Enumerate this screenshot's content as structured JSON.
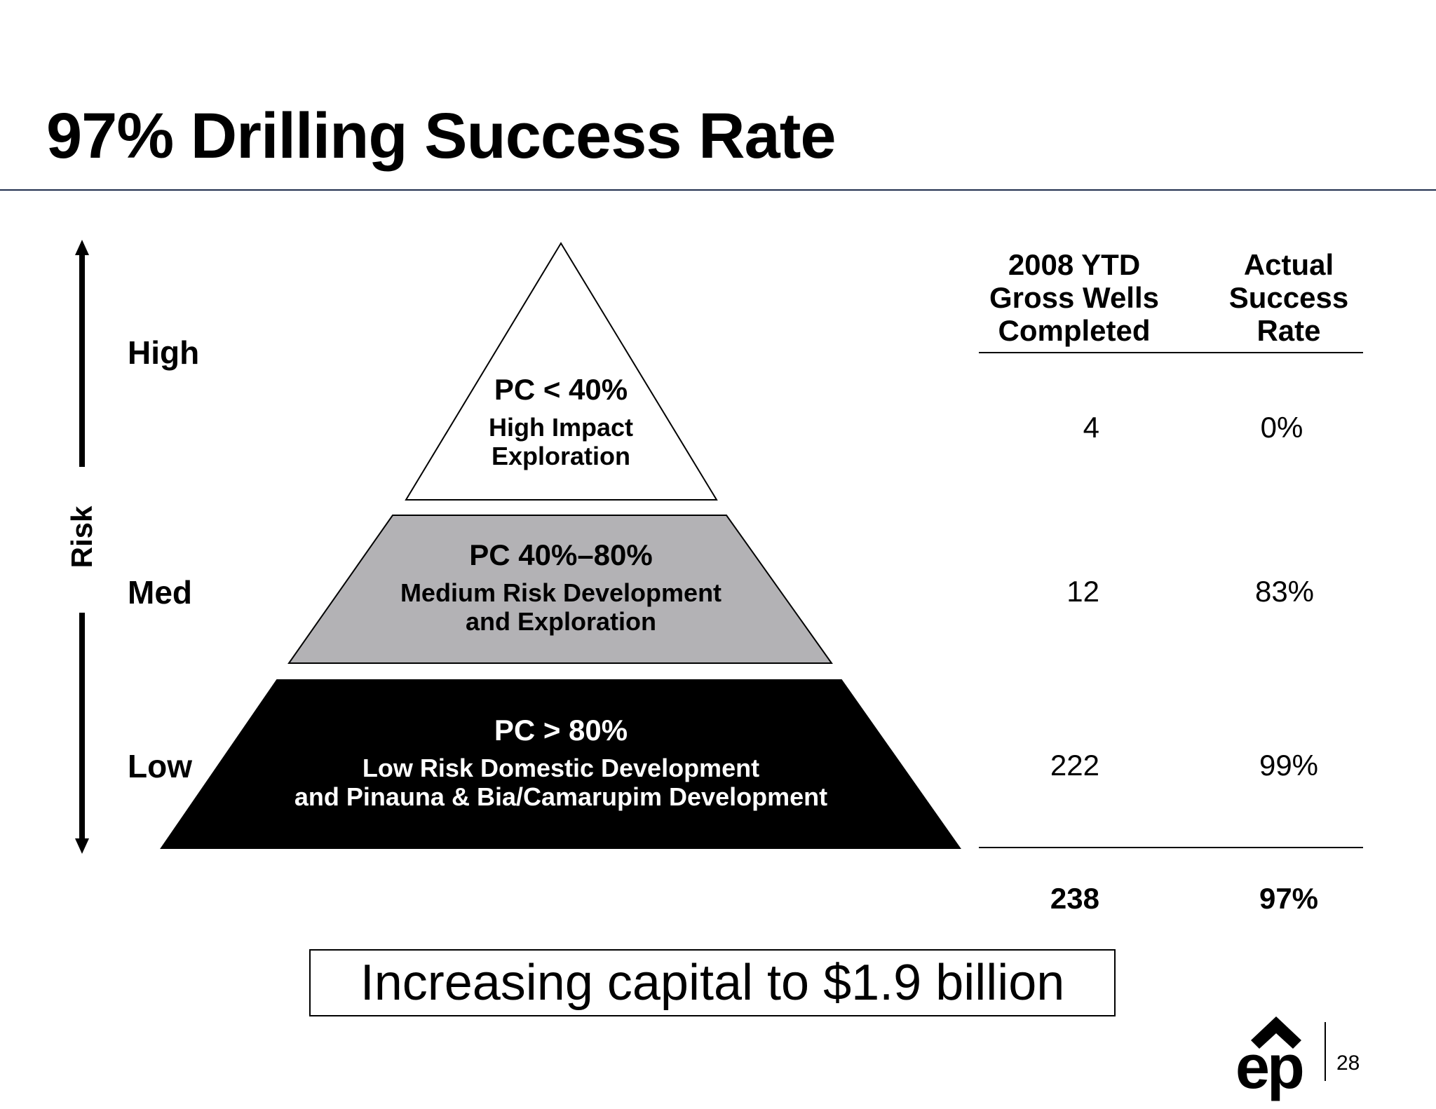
{
  "title": "97% Drilling Success Rate",
  "risk_axis": {
    "label": "Risk",
    "levels": [
      "High",
      "Med",
      "Low"
    ]
  },
  "pyramid": {
    "tiers": [
      {
        "pc": "PC < 40%",
        "desc_lines": [
          "High Impact",
          "Exploration"
        ],
        "fill": "#ffffff",
        "text_color": "#000000"
      },
      {
        "pc": "PC  40%–80%",
        "desc_lines": [
          "Medium Risk Development",
          "and Exploration"
        ],
        "fill": "#b3b2b5",
        "text_color": "#000000"
      },
      {
        "pc": "PC > 80%",
        "desc_lines": [
          "Low Risk Domestic Development",
          "and Pinauna & Bia/Camarupim Development"
        ],
        "fill": "#000000",
        "text_color": "#ffffff"
      }
    ]
  },
  "table": {
    "headers": {
      "wells": [
        "2008 YTD",
        "Gross Wells",
        "Completed"
      ],
      "rate": [
        "Actual",
        "Success",
        "Rate"
      ]
    },
    "rows": [
      {
        "wells": "4",
        "rate": "0%"
      },
      {
        "wells": "12",
        "rate": "83%"
      },
      {
        "wells": "222",
        "rate": "99%"
      }
    ],
    "total": {
      "wells": "238",
      "rate": "97%"
    }
  },
  "callout": "Increasing capital to $1.9 billion",
  "logo": {
    "text": "ep",
    "icon": "chevron-up-icon"
  },
  "page_number": "28"
}
